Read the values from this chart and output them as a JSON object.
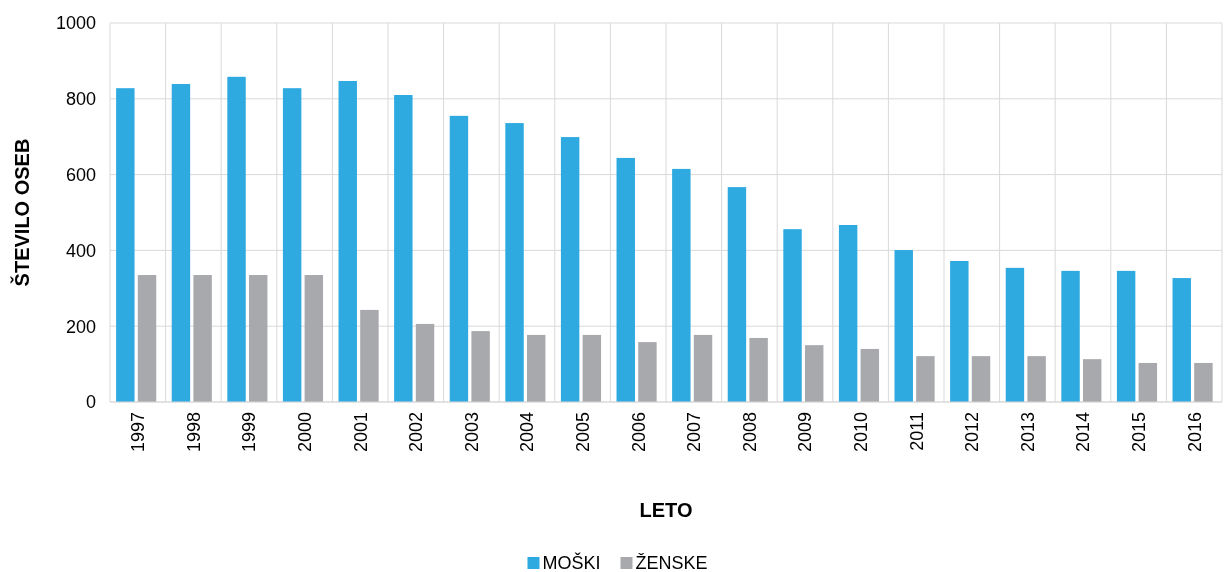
{
  "chart_data": {
    "type": "bar",
    "xlabel": "LETO",
    "ylabel": "ŠTEVILO OSEB",
    "categories": [
      "1997",
      "1998",
      "1999",
      "2000",
      "2001",
      "2002",
      "2003",
      "2004",
      "2005",
      "2006",
      "2007",
      "2008",
      "2009",
      "2010",
      "2011",
      "2012",
      "2013",
      "2014",
      "2015",
      "2016"
    ],
    "series": [
      {
        "name": "MOŠKI",
        "color": "#2eaae1",
        "values": [
          828,
          839,
          858,
          828,
          847,
          810,
          755,
          736,
          699,
          644,
          615,
          567,
          456,
          467,
          401,
          372,
          354,
          346,
          346,
          327
        ]
      },
      {
        "name": "ŽENSKE",
        "color": "#a7a9ac",
        "values": [
          335,
          335,
          335,
          335,
          243,
          206,
          187,
          177,
          177,
          158,
          177,
          169,
          150,
          140,
          121,
          121,
          121,
          113,
          103,
          103
        ]
      }
    ],
    "ylim": [
      0,
      1000
    ],
    "yticks": [
      0,
      200,
      400,
      600,
      800,
      1000
    ],
    "grid": true,
    "legend": "bottom"
  }
}
